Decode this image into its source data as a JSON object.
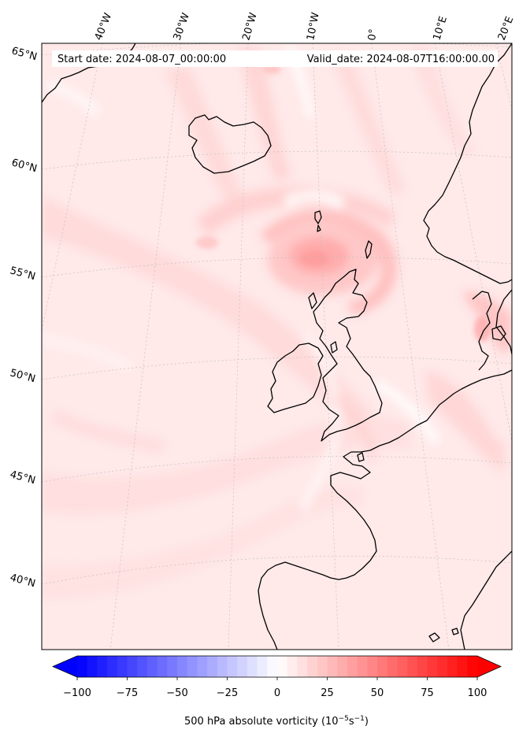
{
  "header": {
    "start_date": "Start date: 2024-08-07_00:00:00",
    "valid_date": "Valid_date: 2024-08-07T16:00:00.00"
  },
  "longitude_labels": [
    "40°W",
    "30°W",
    "20°W",
    "10°W",
    "0°",
    "10°E",
    "20°E"
  ],
  "latitude_labels": [
    "65°N",
    "60°N",
    "55°N",
    "50°N",
    "45°N",
    "40°N"
  ],
  "colorbar": {
    "label": "500 hPa absolute vorticity (10",
    "label_exp1": "−5",
    "label_mid": "s",
    "label_exp2": "−1",
    "label_end": ")",
    "ticks": [
      "−100",
      "−75",
      "−50",
      "−25",
      "0",
      "25",
      "50",
      "75",
      "100"
    ],
    "min": -100,
    "max": 100,
    "colormap": "bwr",
    "extend": "both"
  },
  "colors": {
    "negative_max": "#0000ff",
    "neutral": "#ffffff",
    "positive_max": "#ff0000",
    "coastline": "#000000"
  }
}
